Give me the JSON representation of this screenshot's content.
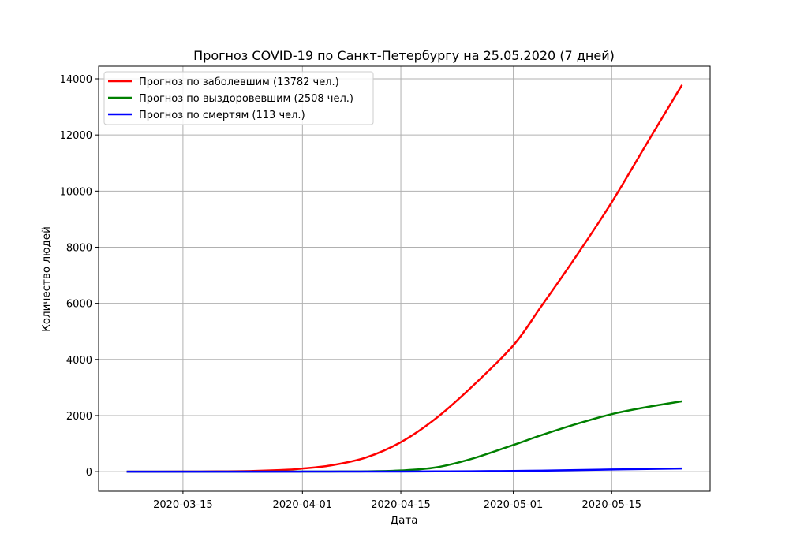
{
  "chart_data": {
    "type": "line",
    "title": "Прогноз COVID-19 по Санкт-Петербургу на 25.05.2020 (7 дней)",
    "xlabel": "Дата",
    "ylabel": "Количество людей",
    "xlim": [
      "2020-03-03",
      "2020-05-29"
    ],
    "ylim": [
      -700,
      14450
    ],
    "x_ticks": [
      "2020-03-15",
      "2020-04-01",
      "2020-04-15",
      "2020-05-01",
      "2020-05-15"
    ],
    "y_ticks": [
      0,
      2000,
      4000,
      6000,
      8000,
      10000,
      12000,
      14000
    ],
    "grid": true,
    "legend_position": "top-left",
    "x": [
      "2020-03-07",
      "2020-03-15",
      "2020-03-20",
      "2020-03-25",
      "2020-03-30",
      "2020-04-01",
      "2020-04-05",
      "2020-04-10",
      "2020-04-15",
      "2020-04-20",
      "2020-04-25",
      "2020-05-01",
      "2020-05-05",
      "2020-05-10",
      "2020-05-15",
      "2020-05-20",
      "2020-05-25"
    ],
    "series": [
      {
        "name": "Прогноз по заболевшим (13782 чел.)",
        "color": "#ff0000",
        "values": [
          0,
          2,
          8,
          25,
          70,
          110,
          220,
          500,
          1050,
          1900,
          3000,
          4500,
          5900,
          7700,
          9600,
          11700,
          13782
        ]
      },
      {
        "name": "Прогноз по выздоровевшим (2508 чел.)",
        "color": "#008000",
        "values": [
          0,
          0,
          0,
          0,
          1,
          2,
          4,
          10,
          40,
          150,
          450,
          950,
          1300,
          1700,
          2050,
          2300,
          2508
        ]
      },
      {
        "name": "Прогноз по смертям (113 чел.)",
        "color": "#0000ff",
        "values": [
          0,
          0,
          0,
          0,
          0,
          1,
          1,
          2,
          4,
          8,
          14,
          25,
          35,
          55,
          75,
          95,
          113
        ]
      }
    ]
  }
}
